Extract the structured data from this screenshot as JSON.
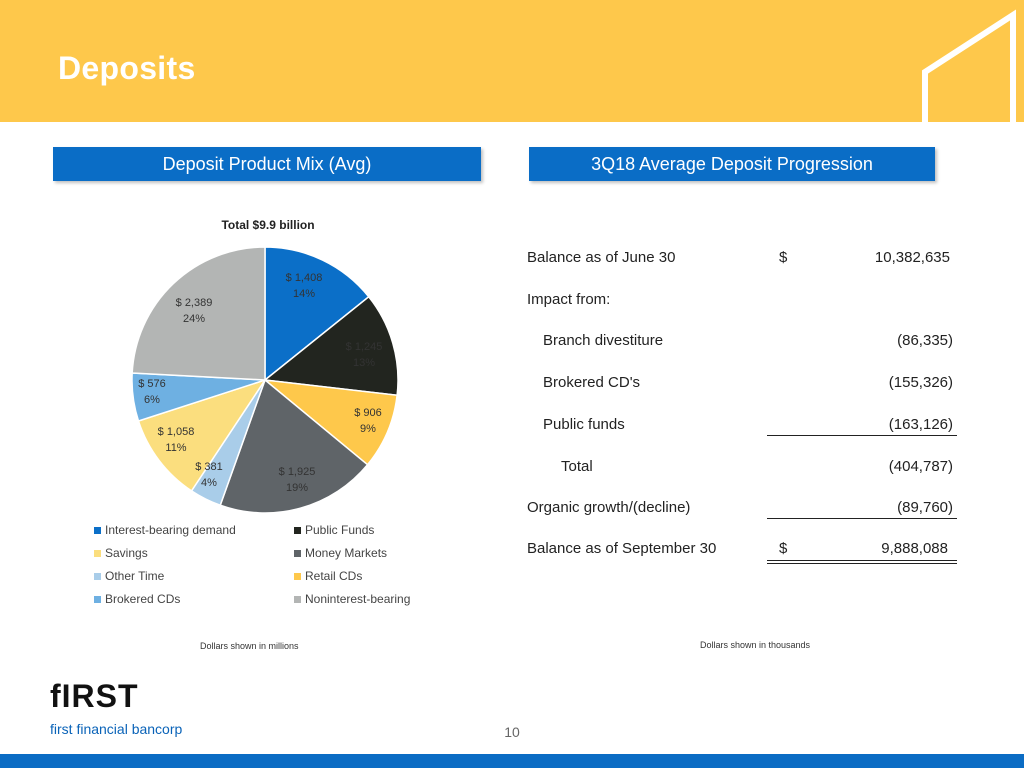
{
  "header": {
    "title": "Deposits"
  },
  "left_panel": {
    "heading": "Deposit Product Mix (Avg)",
    "note": "Dollars shown in millions"
  },
  "right_panel": {
    "heading": "3Q18 Average Deposit Progression",
    "note": "Dollars shown in thousands"
  },
  "chart_data": {
    "type": "pie",
    "title": "Total $9.9 billion",
    "unit": "millions",
    "slices": [
      {
        "name": "Interest-bearing demand",
        "value": 1408,
        "pct": 14,
        "value_label": "$ 1,408",
        "pct_label": "14%",
        "color": "#0b6fc8"
      },
      {
        "name": "Public Funds",
        "value": 1245,
        "pct": 13,
        "value_label": "$ 1,245",
        "pct_label": "13%",
        "color": "#22251f"
      },
      {
        "name": "Retail CDs",
        "value": 906,
        "pct": 9,
        "value_label": "$ 906",
        "pct_label": "9%",
        "color": "#fec84b"
      },
      {
        "name": "Money Markets",
        "value": 1925,
        "pct": 19,
        "value_label": "$ 1,925",
        "pct_label": "19%",
        "color": "#5f6468"
      },
      {
        "name": "Other Time",
        "value": 381,
        "pct": 4,
        "value_label": "$ 381",
        "pct_label": "4%",
        "color": "#a9cde9"
      },
      {
        "name": "Savings",
        "value": 1058,
        "pct": 11,
        "value_label": "$ 1,058",
        "pct_label": "11%",
        "color": "#fbde7e"
      },
      {
        "name": "Brokered CDs",
        "value": 576,
        "pct": 6,
        "value_label": "$ 576",
        "pct_label": "6%",
        "color": "#6eb0e2"
      },
      {
        "name": "Noninterest-bearing",
        "value": 2389,
        "pct": 24,
        "value_label": "$ 2,389",
        "pct_label": "24%",
        "color": "#b3b5b4"
      }
    ],
    "legend": [
      {
        "label": "Interest-bearing demand",
        "color": "#0b6fc8"
      },
      {
        "label": "Public Funds",
        "color": "#22251f"
      },
      {
        "label": "Savings",
        "color": "#fbde7e"
      },
      {
        "label": "Money Markets",
        "color": "#5f6468"
      },
      {
        "label": "Other Time",
        "color": "#a9cde9"
      },
      {
        "label": "Retail CDs",
        "color": "#fec84b"
      },
      {
        "label": "Brokered CDs",
        "color": "#6eb0e2"
      },
      {
        "label": "Noninterest-bearing",
        "color": "#b3b5b4"
      }
    ]
  },
  "progression": {
    "balance_june": {
      "label": "Balance as of June 30",
      "currency": "$",
      "value": "10,382,635"
    },
    "impact_label": "Impact from:",
    "items": [
      {
        "label": "Branch divestiture",
        "value": "(86,335)"
      },
      {
        "label": "Brokered CD's",
        "value": "(155,326)"
      },
      {
        "label": "Public funds",
        "value": "(163,126)"
      }
    ],
    "total": {
      "label": "Total",
      "value": "(404,787)"
    },
    "organic": {
      "label": "Organic growth/(decline)",
      "value": "(89,760)"
    },
    "balance_sept": {
      "label": "Balance as of September 30",
      "currency": "$",
      "value": "9,888,088"
    }
  },
  "footer": {
    "logo_word": "fIRST",
    "logo_sub": "first financial bancorp",
    "page_number": "10"
  },
  "colors": {
    "header_yellow": "#fec84b",
    "brand_blue": "#0a6dc6"
  }
}
